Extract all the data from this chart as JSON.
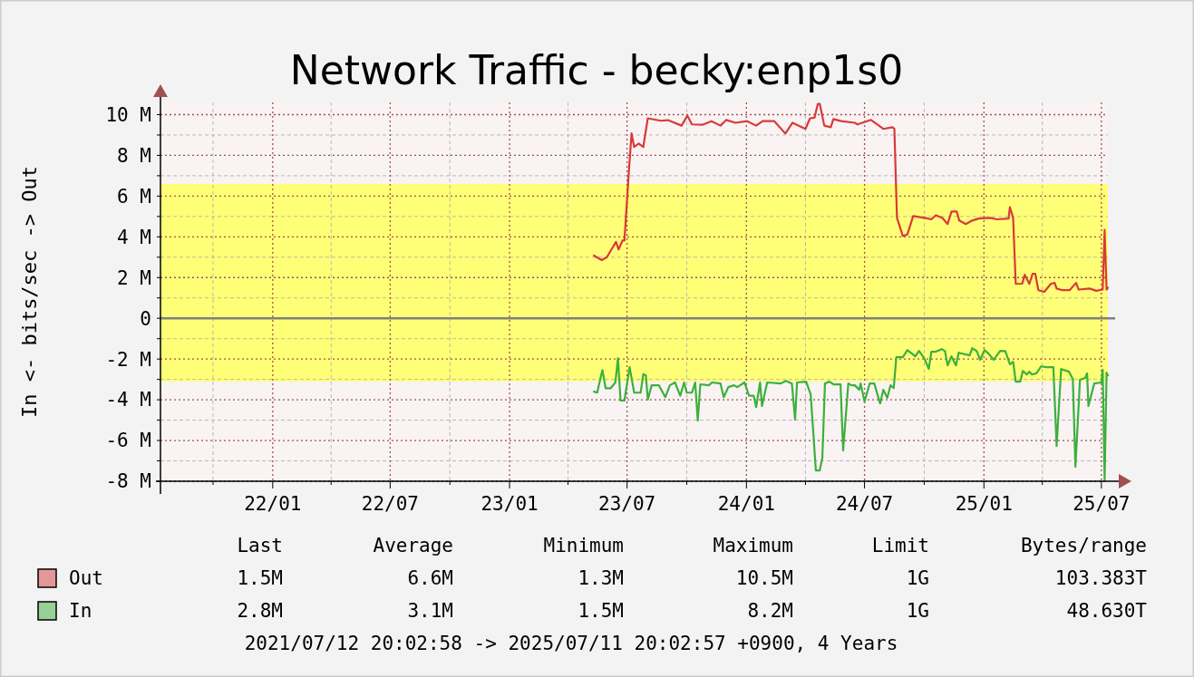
{
  "chart_data": {
    "type": "line",
    "title": "Network Traffic - becky:enp1s0",
    "ylabel": "In <- bits/sec -> Out",
    "xlim": [
      "2021-07-12",
      "2025-07-11"
    ],
    "xticks": [
      {
        "value": "2021-10-01",
        "label": null
      },
      {
        "value": "2022-01-01",
        "label": "22/01"
      },
      {
        "value": "2022-04-01",
        "label": null
      },
      {
        "value": "2022-07-01",
        "label": "22/07"
      },
      {
        "value": "2022-10-01",
        "label": null
      },
      {
        "value": "2023-01-01",
        "label": "23/01"
      },
      {
        "value": "2023-04-01",
        "label": null
      },
      {
        "value": "2023-07-01",
        "label": "23/07"
      },
      {
        "value": "2023-10-01",
        "label": null
      },
      {
        "value": "2024-01-01",
        "label": "24/01"
      },
      {
        "value": "2024-04-01",
        "label": null
      },
      {
        "value": "2024-07-01",
        "label": "24/07"
      },
      {
        "value": "2024-10-01",
        "label": null
      },
      {
        "value": "2025-01-01",
        "label": "25/01"
      },
      {
        "value": "2025-04-01",
        "label": null
      },
      {
        "value": "2025-07-01",
        "label": "25/07"
      }
    ],
    "ylim": [
      -8,
      10.6
    ],
    "yticks": [
      {
        "value": -8,
        "label": "-8 M"
      },
      {
        "value": -7,
        "label": null
      },
      {
        "value": -6,
        "label": "-6 M"
      },
      {
        "value": -5,
        "label": null
      },
      {
        "value": -4,
        "label": "-4 M"
      },
      {
        "value": -3,
        "label": null
      },
      {
        "value": -2,
        "label": "-2 M"
      },
      {
        "value": -1,
        "label": null
      },
      {
        "value": 0,
        "label": "0"
      },
      {
        "value": 1,
        "label": null
      },
      {
        "value": 2,
        "label": "2 M"
      },
      {
        "value": 3,
        "label": null
      },
      {
        "value": 4,
        "label": "4 M"
      },
      {
        "value": 5,
        "label": null
      },
      {
        "value": 6,
        "label": "6 M"
      },
      {
        "value": 7,
        "label": null
      },
      {
        "value": 8,
        "label": "8 M"
      },
      {
        "value": 9,
        "label": null
      },
      {
        "value": 10,
        "label": "10 M"
      }
    ],
    "grid": true,
    "legend": "bottom",
    "bands": [
      {
        "axis": "y",
        "from": -3.1,
        "to": 6.6,
        "color": "#ffff77"
      }
    ],
    "ref_lines": [
      {
        "axis": "y",
        "value": 0,
        "color": "#808080"
      }
    ],
    "series": [
      {
        "name": "Out",
        "color": "#d83a3a",
        "x": [
          "2023-05-11",
          "2023-05-23",
          "2023-05-31",
          "2023-06-07",
          "2023-06-14",
          "2023-06-18",
          "2023-06-24",
          "2023-06-27",
          "2023-07-04",
          "2023-07-08",
          "2023-07-12",
          "2023-07-19",
          "2023-07-26",
          "2023-08-02",
          "2023-08-22",
          "2023-09-02",
          "2023-09-23",
          "2023-10-02",
          "2023-10-09",
          "2023-10-25",
          "2023-11-08",
          "2023-11-22",
          "2023-12-01",
          "2023-12-15",
          "2024-01-02",
          "2024-01-16",
          "2024-01-26",
          "2024-02-13",
          "2024-03-01",
          "2024-03-12",
          "2024-04-01",
          "2024-04-08",
          "2024-04-15",
          "2024-04-20",
          "2024-04-23",
          "2024-04-30",
          "2024-05-10",
          "2024-05-14",
          "2024-05-26",
          "2024-06-16",
          "2024-06-20",
          "2024-07-11",
          "2024-07-30",
          "2024-08-13",
          "2024-08-16",
          "2024-08-20",
          "2024-08-29",
          "2024-09-05",
          "2024-09-14",
          "2024-10-02",
          "2024-10-12",
          "2024-10-19",
          "2024-10-29",
          "2024-11-06",
          "2024-11-12",
          "2024-11-20",
          "2024-11-24",
          "2024-12-04",
          "2024-12-14",
          "2024-12-24",
          "2025-01-11",
          "2025-01-21",
          "2025-02-08",
          "2025-02-10",
          "2025-02-15",
          "2025-02-19",
          "2025-03-01",
          "2025-03-05",
          "2025-03-12",
          "2025-03-17",
          "2025-03-21",
          "2025-03-26",
          "2025-04-04",
          "2025-04-14",
          "2025-04-20",
          "2025-04-23",
          "2025-05-02",
          "2025-05-13",
          "2025-05-23",
          "2025-05-27",
          "2025-06-13",
          "2025-06-23",
          "2025-07-03",
          "2025-07-06",
          "2025-07-09",
          "2025-07-11"
        ],
        "values": [
          3.08,
          2.86,
          3.0,
          3.38,
          3.75,
          3.38,
          3.82,
          3.82,
          7.3,
          9.08,
          8.41,
          8.58,
          8.41,
          9.82,
          9.7,
          9.73,
          9.46,
          9.95,
          9.52,
          9.5,
          9.68,
          9.46,
          9.74,
          9.6,
          9.68,
          9.46,
          9.68,
          9.68,
          9.07,
          9.6,
          9.3,
          9.82,
          9.85,
          10.53,
          10.53,
          9.46,
          9.38,
          9.78,
          9.68,
          9.6,
          9.52,
          9.74,
          9.3,
          9.38,
          9.3,
          4.93,
          4.04,
          4.12,
          5.02,
          4.93,
          4.86,
          5.06,
          4.93,
          4.63,
          5.24,
          5.25,
          4.8,
          4.63,
          4.8,
          4.9,
          4.93,
          4.86,
          4.9,
          5.46,
          4.93,
          1.69,
          1.7,
          2.14,
          1.69,
          2.19,
          2.19,
          1.38,
          1.3,
          1.69,
          1.74,
          1.46,
          1.38,
          1.38,
          1.74,
          1.41,
          1.46,
          1.35,
          1.41,
          4.34,
          1.41,
          1.5
        ]
      },
      {
        "name": "In",
        "color": "#3cb03c",
        "x": [
          "2023-05-11",
          "2023-05-16",
          "2023-05-24",
          "2023-05-29",
          "2023-06-06",
          "2023-06-13",
          "2023-06-17",
          "2023-06-21",
          "2023-06-27",
          "2023-07-05",
          "2023-07-12",
          "2023-07-22",
          "2023-07-26",
          "2023-07-30",
          "2023-08-02",
          "2023-08-08",
          "2023-08-19",
          "2023-08-29",
          "2023-09-05",
          "2023-09-13",
          "2023-09-21",
          "2023-09-27",
          "2023-10-01",
          "2023-10-09",
          "2023-10-14",
          "2023-10-18",
          "2023-10-22",
          "2023-11-04",
          "2023-11-09",
          "2023-11-22",
          "2023-11-27",
          "2023-12-04",
          "2023-12-13",
          "2023-12-18",
          "2023-12-29",
          "2024-01-05",
          "2024-01-12",
          "2024-01-16",
          "2024-01-22",
          "2024-01-25",
          "2024-02-02",
          "2024-02-23",
          "2024-03-02",
          "2024-03-11",
          "2024-03-16",
          "2024-03-19",
          "2024-04-02",
          "2024-04-09",
          "2024-04-17",
          "2024-04-23",
          "2024-04-27",
          "2024-05-01",
          "2024-05-08",
          "2024-05-14",
          "2024-05-25",
          "2024-05-29",
          "2024-06-06",
          "2024-06-11",
          "2024-06-16",
          "2024-06-23",
          "2024-06-25",
          "2024-07-01",
          "2024-07-09",
          "2024-07-16",
          "2024-07-25",
          "2024-07-30",
          "2024-08-05",
          "2024-08-10",
          "2024-08-15",
          "2024-08-19",
          "2024-08-29",
          "2024-09-05",
          "2024-09-12",
          "2024-09-17",
          "2024-09-23",
          "2024-10-01",
          "2024-10-08",
          "2024-10-12",
          "2024-10-19",
          "2024-10-28",
          "2024-11-02",
          "2024-11-06",
          "2024-11-12",
          "2024-11-19",
          "2024-11-23",
          "2024-12-10",
          "2024-12-14",
          "2024-12-21",
          "2024-12-26",
          "2025-01-02",
          "2025-01-08",
          "2025-01-16",
          "2025-01-26",
          "2025-02-03",
          "2025-02-10",
          "2025-02-15",
          "2025-02-19",
          "2025-02-26",
          "2025-03-02",
          "2025-03-08",
          "2025-03-12",
          "2025-03-16",
          "2025-03-23",
          "2025-03-30",
          "2025-04-07",
          "2025-04-18",
          "2025-04-23",
          "2025-04-30",
          "2025-05-12",
          "2025-05-18",
          "2025-05-22",
          "2025-05-29",
          "2025-06-06",
          "2025-06-09",
          "2025-06-11",
          "2025-06-20",
          "2025-07-01",
          "2025-07-03",
          "2025-07-06",
          "2025-07-09",
          "2025-07-11"
        ],
        "values": [
          -3.6,
          -3.65,
          -2.54,
          -3.43,
          -3.43,
          -3.15,
          -1.96,
          -4.04,
          -4.04,
          -2.4,
          -3.65,
          -3.65,
          -2.74,
          -2.8,
          -3.99,
          -3.29,
          -3.29,
          -3.87,
          -3.29,
          -3.15,
          -3.8,
          -3.15,
          -3.65,
          -3.65,
          -3.15,
          -5.02,
          -3.24,
          -3.29,
          -3.15,
          -3.2,
          -3.87,
          -3.38,
          -3.29,
          -3.38,
          -3.15,
          -3.8,
          -3.8,
          -4.36,
          -3.15,
          -4.31,
          -3.15,
          -3.2,
          -3.07,
          -3.2,
          -4.97,
          -3.15,
          -3.11,
          -3.73,
          -7.47,
          -7.47,
          -6.84,
          -3.2,
          -3.11,
          -3.24,
          -3.24,
          -6.49,
          -3.2,
          -3.29,
          -3.29,
          -3.51,
          -3.2,
          -4.09,
          -3.2,
          -3.2,
          -4.18,
          -3.51,
          -3.91,
          -3.29,
          -3.43,
          -1.91,
          -1.91,
          -1.56,
          -1.73,
          -1.87,
          -1.6,
          -1.96,
          -2.49,
          -1.64,
          -1.64,
          -1.51,
          -1.61,
          -2.31,
          -1.87,
          -2.31,
          -1.69,
          -1.82,
          -1.47,
          -1.61,
          -2.04,
          -1.56,
          -1.73,
          -2.04,
          -1.6,
          -1.61,
          -2.26,
          -2.13,
          -3.11,
          -3.11,
          -2.58,
          -2.76,
          -2.62,
          -2.76,
          -2.7,
          -2.36,
          -2.4,
          -2.4,
          -6.27,
          -2.49,
          -2.62,
          -2.98,
          -7.29,
          -3.02,
          -2.93,
          -2.7,
          -4.31,
          -3.2,
          -3.15,
          -2.53,
          -7.96,
          -2.67,
          -2.8
        ]
      }
    ],
    "annotations": [
      "Last",
      "Average",
      "Minimum",
      "Maximum",
      "Limit",
      "Bytes/range",
      "1.5M",
      "6.6M",
      "1.3M",
      "10.5M",
      "1G",
      "103.383T",
      "2.8M",
      "3.1M",
      "1.5M",
      "8.2M",
      "1G",
      "48.630T",
      "2021/07/12 20:02:58 -> 2025/07/11 20:02:57 +0900, 4 Years"
    ]
  }
}
